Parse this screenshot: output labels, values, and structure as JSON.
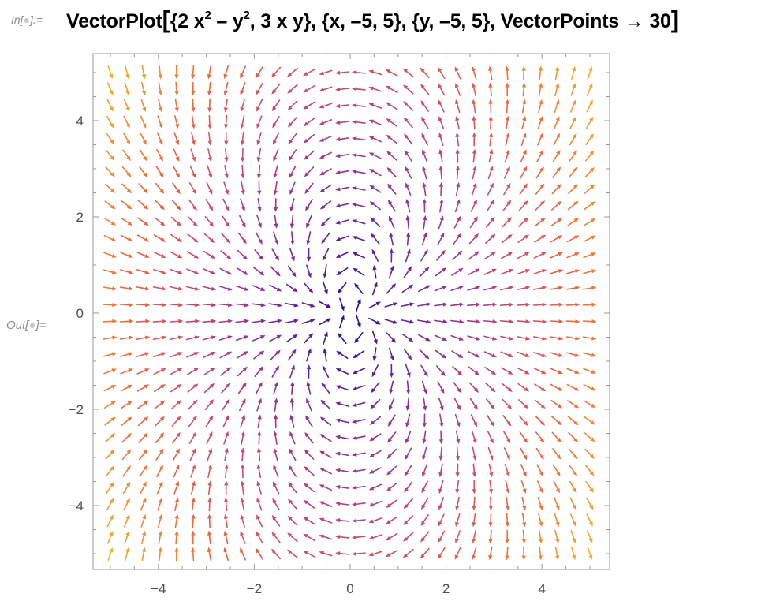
{
  "cell": {
    "in_label": "In[",
    "in_label_end": "]:=",
    "out_label": "Out[",
    "out_label_end": "]=",
    "input_text": {
      "fn": "VectorPlot",
      "part1": "{2 x",
      "sup1": "2",
      "part2": " – y",
      "sup2": "2",
      "part3": ",  3 x y}, {x, –5, 5}, {y, –5, 5}, VectorPoints → 30"
    }
  },
  "chart_data": {
    "type": "vector-field",
    "field": {
      "vx": "2*x^2 - y^2",
      "vy": "3*x*y"
    },
    "x_range": [
      -5,
      5
    ],
    "y_range": [
      -5,
      5
    ],
    "vector_points": 30,
    "xlim": [
      -5.4,
      5.4
    ],
    "ylim": [
      -5.4,
      5.4
    ],
    "x_ticks": [
      -4,
      -2,
      0,
      2,
      4
    ],
    "y_ticks": [
      -4,
      -2,
      0,
      2,
      4
    ],
    "x_tick_labels": [
      "−4",
      "−2",
      "0",
      "2",
      "4"
    ],
    "y_tick_labels": [
      "−4",
      "−2",
      "0",
      "2",
      "4"
    ],
    "color_scale": [
      "#1a0a9c",
      "#7b2c9e",
      "#c4437a",
      "#ee6a3a",
      "#f9b02a"
    ],
    "frame_color": "#999999"
  }
}
